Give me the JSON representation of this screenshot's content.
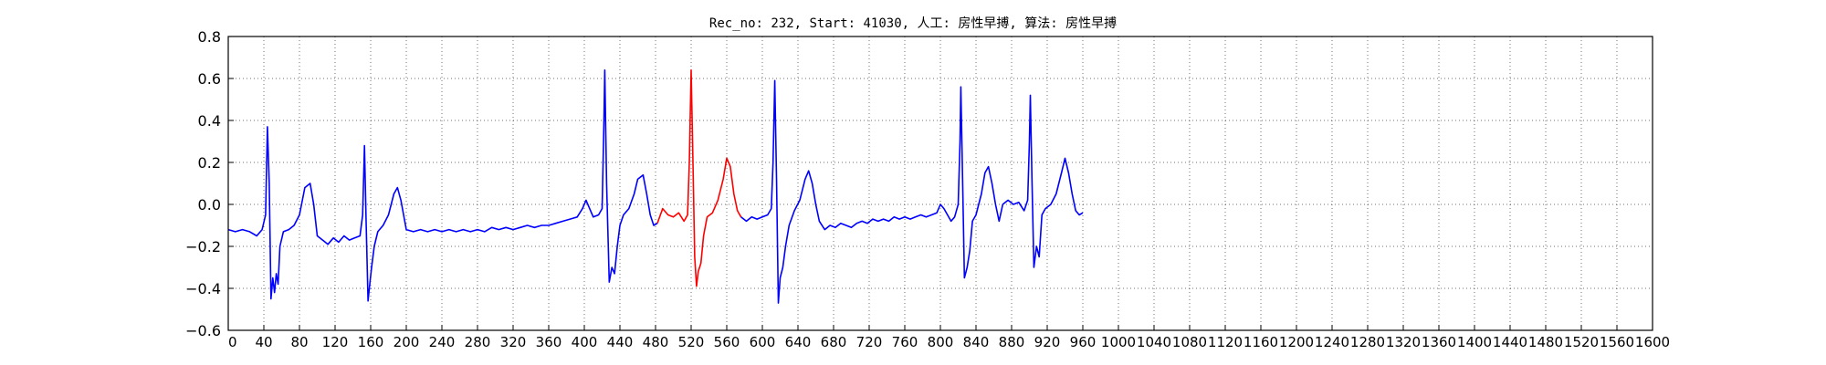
{
  "chart_data": {
    "type": "line",
    "title": "Rec_no: 232, Start: 41030, 人工: 房性早搏, 算法: 房性早搏",
    "xlabel": "",
    "ylabel": "",
    "xlim": [
      0,
      1600
    ],
    "ylim": [
      -0.6,
      0.8
    ],
    "grid": true,
    "y_ticks": [
      -0.6,
      -0.4,
      -0.2,
      0.0,
      0.2,
      0.4,
      0.6,
      0.8
    ],
    "y_tick_labels": [
      "−0.6",
      "−0.4",
      "−0.2",
      "0.0",
      "0.2",
      "0.4",
      "0.6",
      "0.8"
    ],
    "x_tick_step": 40,
    "x_tick_labels": [
      "0",
      "40",
      "80",
      "120",
      "160",
      "200",
      "240",
      "280",
      "320",
      "360",
      "400",
      "440",
      "480",
      "520",
      "560",
      "600",
      "640",
      "680",
      "720",
      "760",
      "800",
      "840",
      "880",
      "920",
      "960",
      "1000",
      "1040",
      "1080",
      "1120",
      "1160",
      "1200",
      "1240",
      "1280",
      "1320",
      "1360",
      "1400",
      "1440",
      "1480",
      "1520",
      "1560",
      "1600"
    ],
    "series": [
      {
        "color": "#0000ff",
        "points": [
          [
            0,
            -0.12
          ],
          [
            8,
            -0.13
          ],
          [
            16,
            -0.12
          ],
          [
            24,
            -0.13
          ],
          [
            32,
            -0.15
          ],
          [
            38,
            -0.12
          ],
          [
            42,
            -0.05
          ],
          [
            44,
            0.37
          ],
          [
            46,
            0.1
          ],
          [
            48,
            -0.45
          ],
          [
            50,
            -0.35
          ],
          [
            52,
            -0.42
          ],
          [
            54,
            -0.33
          ],
          [
            56,
            -0.38
          ],
          [
            58,
            -0.2
          ],
          [
            62,
            -0.13
          ],
          [
            68,
            -0.12
          ],
          [
            74,
            -0.1
          ],
          [
            80,
            -0.05
          ],
          [
            86,
            0.08
          ],
          [
            92,
            0.1
          ],
          [
            96,
            0.0
          ],
          [
            100,
            -0.15
          ],
          [
            106,
            -0.17
          ],
          [
            112,
            -0.19
          ],
          [
            118,
            -0.16
          ],
          [
            124,
            -0.18
          ],
          [
            130,
            -0.15
          ],
          [
            136,
            -0.17
          ],
          [
            142,
            -0.16
          ],
          [
            148,
            -0.15
          ],
          [
            151,
            -0.05
          ],
          [
            153,
            0.28
          ],
          [
            155,
            -0.1
          ],
          [
            157,
            -0.46
          ],
          [
            159,
            -0.38
          ],
          [
            161,
            -0.3
          ],
          [
            164,
            -0.2
          ],
          [
            168,
            -0.13
          ],
          [
            174,
            -0.1
          ],
          [
            180,
            -0.05
          ],
          [
            186,
            0.05
          ],
          [
            190,
            0.08
          ],
          [
            194,
            0.02
          ],
          [
            200,
            -0.12
          ],
          [
            208,
            -0.13
          ],
          [
            216,
            -0.12
          ],
          [
            224,
            -0.13
          ],
          [
            232,
            -0.12
          ],
          [
            240,
            -0.13
          ],
          [
            248,
            -0.12
          ],
          [
            256,
            -0.13
          ],
          [
            264,
            -0.12
          ],
          [
            272,
            -0.13
          ],
          [
            280,
            -0.12
          ],
          [
            288,
            -0.13
          ],
          [
            296,
            -0.11
          ],
          [
            304,
            -0.12
          ],
          [
            312,
            -0.11
          ],
          [
            320,
            -0.12
          ],
          [
            328,
            -0.11
          ],
          [
            336,
            -0.1
          ],
          [
            344,
            -0.11
          ],
          [
            352,
            -0.1
          ],
          [
            360,
            -0.1
          ],
          [
            368,
            -0.09
          ],
          [
            376,
            -0.08
          ],
          [
            384,
            -0.07
          ],
          [
            392,
            -0.06
          ],
          [
            398,
            -0.02
          ],
          [
            402,
            0.02
          ],
          [
            406,
            -0.02
          ],
          [
            410,
            -0.06
          ],
          [
            416,
            -0.05
          ],
          [
            420,
            -0.02
          ],
          [
            422,
            0.4
          ],
          [
            423,
            0.64
          ],
          [
            425,
            0.1
          ],
          [
            428,
            -0.37
          ],
          [
            431,
            -0.3
          ],
          [
            434,
            -0.33
          ],
          [
            437,
            -0.2
          ],
          [
            440,
            -0.1
          ],
          [
            444,
            -0.05
          ],
          [
            450,
            -0.02
          ],
          [
            456,
            0.05
          ],
          [
            460,
            0.12
          ],
          [
            466,
            0.14
          ],
          [
            470,
            0.05
          ],
          [
            474,
            -0.05
          ],
          [
            478,
            -0.1
          ],
          [
            482,
            -0.09
          ]
        ]
      },
      {
        "color": "#ff0000",
        "points": [
          [
            482,
            -0.09
          ],
          [
            488,
            -0.02
          ],
          [
            494,
            -0.05
          ],
          [
            500,
            -0.06
          ],
          [
            506,
            -0.04
          ],
          [
            512,
            -0.08
          ],
          [
            516,
            -0.05
          ],
          [
            518,
            0.2
          ],
          [
            520,
            0.64
          ],
          [
            522,
            0.2
          ],
          [
            524,
            -0.25
          ],
          [
            526,
            -0.39
          ],
          [
            528,
            -0.32
          ],
          [
            531,
            -0.28
          ],
          [
            534,
            -0.15
          ],
          [
            538,
            -0.06
          ],
          [
            544,
            -0.04
          ],
          [
            550,
            0.02
          ],
          [
            556,
            0.12
          ],
          [
            560,
            0.22
          ],
          [
            564,
            0.18
          ],
          [
            568,
            0.05
          ],
          [
            572,
            -0.03
          ],
          [
            576,
            -0.06
          ]
        ]
      },
      {
        "color": "#0000ff",
        "points": [
          [
            576,
            -0.06
          ],
          [
            582,
            -0.08
          ],
          [
            588,
            -0.06
          ],
          [
            594,
            -0.07
          ],
          [
            600,
            -0.06
          ],
          [
            606,
            -0.05
          ],
          [
            610,
            -0.02
          ],
          [
            612,
            0.2
          ],
          [
            614,
            0.59
          ],
          [
            616,
            0.1
          ],
          [
            618,
            -0.47
          ],
          [
            620,
            -0.35
          ],
          [
            623,
            -0.3
          ],
          [
            626,
            -0.2
          ],
          [
            630,
            -0.1
          ],
          [
            636,
            -0.03
          ],
          [
            642,
            0.02
          ],
          [
            648,
            0.12
          ],
          [
            652,
            0.16
          ],
          [
            656,
            0.1
          ],
          [
            660,
            0.0
          ],
          [
            664,
            -0.08
          ],
          [
            670,
            -0.12
          ],
          [
            676,
            -0.1
          ],
          [
            682,
            -0.11
          ],
          [
            688,
            -0.09
          ],
          [
            694,
            -0.1
          ],
          [
            700,
            -0.11
          ],
          [
            706,
            -0.09
          ],
          [
            712,
            -0.08
          ],
          [
            718,
            -0.09
          ],
          [
            724,
            -0.07
          ],
          [
            730,
            -0.08
          ],
          [
            736,
            -0.07
          ],
          [
            742,
            -0.08
          ],
          [
            748,
            -0.06
          ],
          [
            754,
            -0.07
          ],
          [
            760,
            -0.06
          ],
          [
            766,
            -0.07
          ],
          [
            772,
            -0.06
          ],
          [
            778,
            -0.05
          ],
          [
            784,
            -0.06
          ],
          [
            790,
            -0.05
          ],
          [
            796,
            -0.04
          ],
          [
            800,
            0.0
          ],
          [
            804,
            -0.02
          ],
          [
            808,
            -0.05
          ],
          [
            812,
            -0.08
          ],
          [
            816,
            -0.06
          ],
          [
            820,
            0.0
          ],
          [
            822,
            0.3
          ],
          [
            823,
            0.56
          ],
          [
            825,
            0.1
          ],
          [
            827,
            -0.35
          ],
          [
            830,
            -0.3
          ],
          [
            833,
            -0.22
          ],
          [
            836,
            -0.08
          ],
          [
            840,
            -0.05
          ],
          [
            846,
            0.05
          ],
          [
            850,
            0.15
          ],
          [
            854,
            0.18
          ],
          [
            858,
            0.1
          ],
          [
            862,
            0.0
          ],
          [
            866,
            -0.08
          ],
          [
            870,
            0.0
          ],
          [
            876,
            0.02
          ],
          [
            882,
            0.0
          ],
          [
            888,
            0.01
          ],
          [
            894,
            -0.03
          ],
          [
            898,
            0.02
          ],
          [
            900,
            0.3
          ],
          [
            901,
            0.52
          ],
          [
            903,
            0.1
          ],
          [
            905,
            -0.3
          ],
          [
            908,
            -0.2
          ],
          [
            911,
            -0.25
          ],
          [
            914,
            -0.05
          ],
          [
            918,
            -0.02
          ],
          [
            924,
            0.0
          ],
          [
            930,
            0.05
          ],
          [
            936,
            0.15
          ],
          [
            940,
            0.22
          ],
          [
            944,
            0.15
          ],
          [
            948,
            0.05
          ],
          [
            952,
            -0.03
          ],
          [
            956,
            -0.05
          ],
          [
            960,
            -0.04
          ]
        ]
      }
    ]
  }
}
